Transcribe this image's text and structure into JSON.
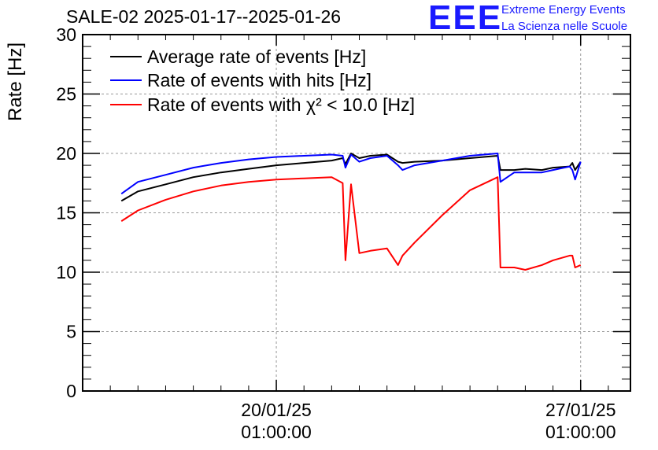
{
  "header": {
    "title": "SALE-02 2025-01-17--2025-01-26",
    "logo_mark": "EEE",
    "logo_line1": "Extreme Energy Events",
    "logo_line2": "La Scienza nelle Scuole"
  },
  "chart_data": {
    "type": "line",
    "title": "SALE-02 2025-01-17--2025-01-26",
    "ylabel": "Rate [Hz]",
    "xlabel": "",
    "ylim": [
      0,
      30
    ],
    "yticks": [
      0,
      5,
      10,
      15,
      20,
      25,
      30
    ],
    "xlim": [
      0,
      9.9
    ],
    "x_unit": "days after 2025-01-17 00:00",
    "xticks": [
      {
        "x": 3.5,
        "label_line1": "20/01/25",
        "label_line2": "01:00:00"
      },
      {
        "x": 9.0,
        "label_line1": "27/01/25",
        "label_line2": "01:00:00"
      }
    ],
    "grid": true,
    "legend_position": "top-left",
    "colors": {
      "black": "#000000",
      "blue": "#0000ff",
      "red": "#ff0000"
    },
    "series": [
      {
        "name": "Average rate of events [Hz]",
        "color": "#000000",
        "x": [
          0.7,
          1.0,
          1.5,
          2.0,
          2.5,
          3.0,
          3.5,
          4.0,
          4.5,
          4.7,
          4.75,
          4.85,
          5.0,
          5.2,
          5.5,
          5.7,
          5.78,
          6.0,
          6.5,
          7.0,
          7.5,
          7.55,
          7.8,
          8.0,
          8.3,
          8.5,
          8.8,
          8.85,
          8.9,
          9.0
        ],
        "y": [
          16.0,
          16.8,
          17.4,
          18.0,
          18.4,
          18.7,
          19.0,
          19.2,
          19.4,
          19.6,
          19.1,
          20.0,
          19.6,
          19.8,
          19.9,
          19.3,
          19.2,
          19.3,
          19.4,
          19.6,
          19.8,
          18.6,
          18.6,
          18.7,
          18.6,
          18.8,
          18.9,
          19.2,
          18.6,
          19.3
        ]
      },
      {
        "name": "Rate of events with hits [Hz]",
        "color": "#0000ff",
        "x": [
          0.7,
          1.0,
          1.5,
          2.0,
          2.5,
          3.0,
          3.5,
          4.0,
          4.5,
          4.7,
          4.75,
          4.85,
          5.0,
          5.2,
          5.5,
          5.7,
          5.78,
          6.0,
          6.5,
          7.0,
          7.5,
          7.55,
          7.8,
          8.0,
          8.3,
          8.5,
          8.8,
          8.85,
          8.9,
          9.0
        ],
        "y": [
          16.6,
          17.6,
          18.2,
          18.8,
          19.2,
          19.5,
          19.7,
          19.8,
          19.9,
          19.8,
          18.8,
          19.9,
          19.3,
          19.6,
          19.8,
          19.0,
          18.6,
          19.0,
          19.4,
          19.8,
          20.0,
          17.6,
          18.4,
          18.4,
          18.4,
          18.6,
          18.9,
          18.6,
          17.8,
          19.3
        ]
      },
      {
        "name": "Rate of events with χ² < 10.0 [Hz]",
        "color": "#ff0000",
        "x": [
          0.7,
          1.0,
          1.5,
          2.0,
          2.5,
          3.0,
          3.5,
          4.0,
          4.5,
          4.7,
          4.75,
          4.85,
          5.0,
          5.2,
          5.5,
          5.7,
          5.78,
          6.0,
          6.5,
          7.0,
          7.5,
          7.55,
          7.8,
          8.0,
          8.3,
          8.5,
          8.8,
          8.85,
          8.9,
          9.0
        ],
        "y": [
          14.3,
          15.2,
          16.1,
          16.8,
          17.3,
          17.6,
          17.8,
          17.9,
          18.0,
          17.5,
          11.0,
          17.4,
          11.6,
          11.8,
          12.0,
          10.6,
          11.4,
          12.5,
          14.8,
          16.9,
          18.0,
          10.4,
          10.4,
          10.2,
          10.6,
          11.0,
          11.4,
          11.4,
          10.4,
          10.6
        ]
      }
    ]
  }
}
